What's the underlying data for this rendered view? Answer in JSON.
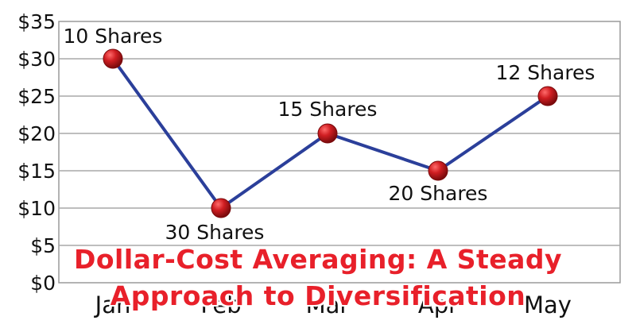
{
  "chart_data": {
    "type": "line",
    "categories": [
      "Jan",
      "Feb",
      "Mar",
      "Apr",
      "May"
    ],
    "series": [
      {
        "values": [
          30,
          10,
          20,
          15,
          25
        ]
      }
    ],
    "point_labels": [
      "10 Shares",
      "30 Shares",
      "15 Shares",
      "20 Shares",
      "12 Shares"
    ],
    "y_ticks": [
      "$0",
      "$5",
      "$10",
      "$15",
      "$20",
      "$25",
      "$30",
      "$35"
    ],
    "ylim": [
      0,
      35
    ],
    "grid": true,
    "line_color": "#2b3f9a",
    "marker_color": "#c0161b"
  },
  "overlay": {
    "title_line_1": "Dollar-Cost Averaging: A Steady",
    "title_line_2": "Approach to Diversification"
  }
}
